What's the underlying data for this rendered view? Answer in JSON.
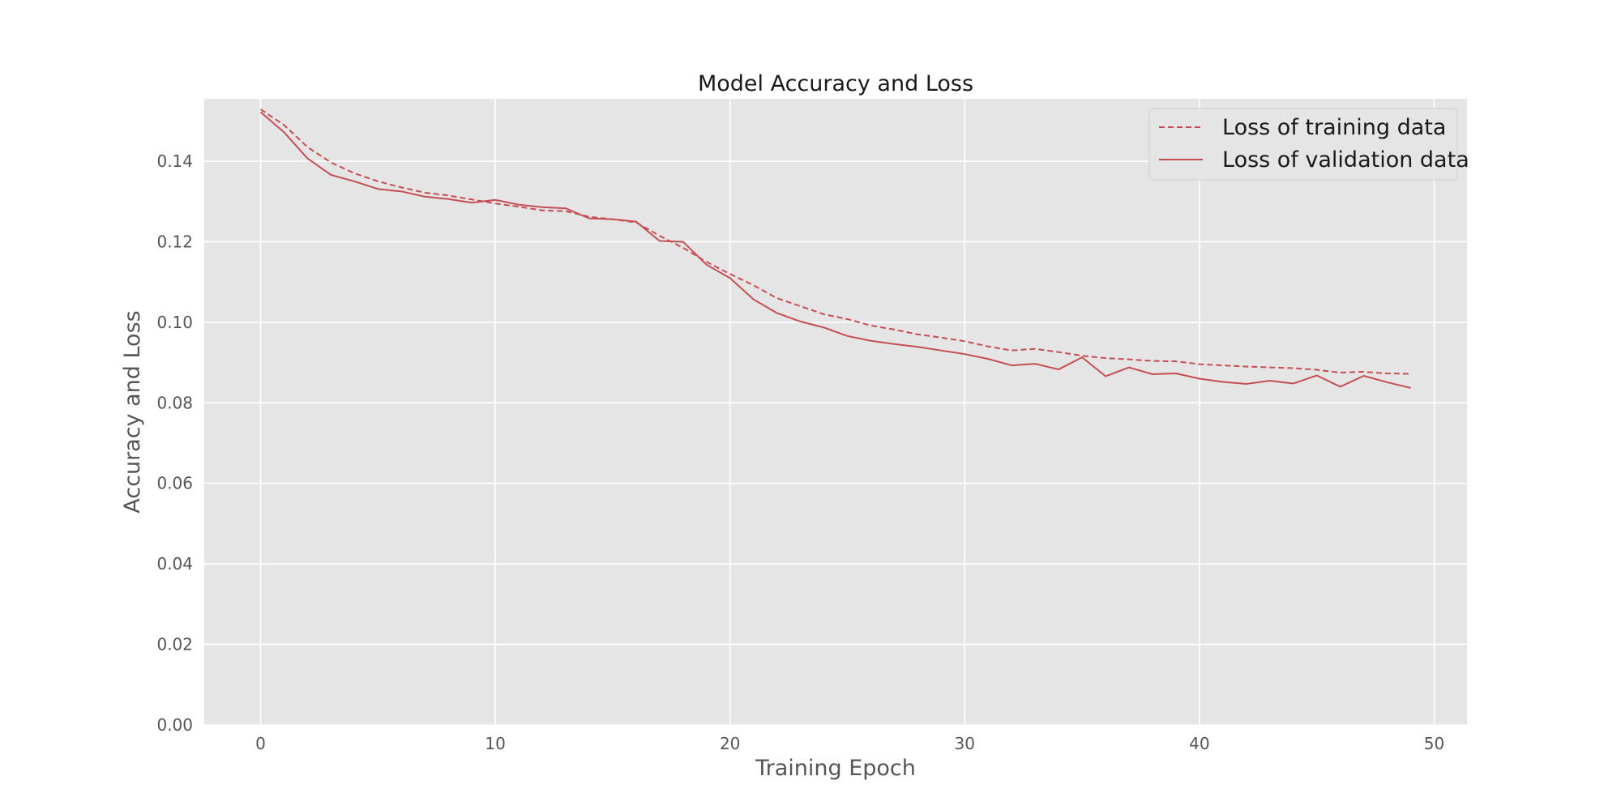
{
  "chart_data": {
    "type": "line",
    "title": "Model Accuracy and Loss",
    "xlabel": "Training Epoch",
    "ylabel": "Accuracy and Loss",
    "xlim": [
      -2.4,
      51.4
    ],
    "ylim": [
      0.0,
      0.1555
    ],
    "xticks": [
      0,
      10,
      20,
      30,
      40,
      50
    ],
    "yticks": [
      0.0,
      0.02,
      0.04,
      0.06,
      0.08,
      0.1,
      0.12,
      0.14
    ],
    "ytick_labels": [
      "0.00",
      "0.02",
      "0.04",
      "0.06",
      "0.08",
      "0.10",
      "0.12",
      "0.14"
    ],
    "grid": true,
    "legend_position": "top-right",
    "x": [
      0,
      1,
      2,
      3,
      4,
      5,
      6,
      7,
      8,
      9,
      10,
      11,
      12,
      13,
      14,
      15,
      16,
      17,
      18,
      19,
      20,
      21,
      22,
      23,
      24,
      25,
      26,
      27,
      28,
      29,
      30,
      31,
      32,
      33,
      34,
      35,
      36,
      37,
      38,
      39,
      40,
      41,
      42,
      43,
      44,
      45,
      46,
      47,
      48,
      49
    ],
    "series": [
      {
        "name": "Loss of training data",
        "color": "#c44e52",
        "dash": "dashed",
        "values": [
          0.1529,
          0.149,
          0.1435,
          0.1397,
          0.137,
          0.135,
          0.1335,
          0.1322,
          0.1315,
          0.1305,
          0.1295,
          0.1287,
          0.1278,
          0.1276,
          0.1262,
          0.1256,
          0.1248,
          0.1215,
          0.1185,
          0.115,
          0.112,
          0.1092,
          0.106,
          0.104,
          0.102,
          0.1008,
          0.0992,
          0.0982,
          0.097,
          0.0962,
          0.0953,
          0.094,
          0.093,
          0.0934,
          0.0926,
          0.0917,
          0.0911,
          0.0908,
          0.0904,
          0.0903,
          0.0896,
          0.0893,
          0.089,
          0.0888,
          0.0886,
          0.0882,
          0.0875,
          0.0877,
          0.0873,
          0.0872
        ]
      },
      {
        "name": "Loss of validation data",
        "color": "#c44e52",
        "dash": "solid",
        "values": [
          0.1522,
          0.1472,
          0.1407,
          0.1366,
          0.135,
          0.1331,
          0.1325,
          0.1312,
          0.1306,
          0.1297,
          0.1304,
          0.1292,
          0.1286,
          0.1283,
          0.1258,
          0.1256,
          0.125,
          0.1202,
          0.12,
          0.1143,
          0.111,
          0.1057,
          0.1023,
          0.1002,
          0.0987,
          0.0966,
          0.0954,
          0.0946,
          0.0939,
          0.093,
          0.0921,
          0.0909,
          0.0893,
          0.0897,
          0.0883,
          0.0913,
          0.0866,
          0.0888,
          0.0871,
          0.0873,
          0.086,
          0.0852,
          0.0847,
          0.0855,
          0.0848,
          0.0868,
          0.084,
          0.0867,
          0.0851,
          0.0837
        ]
      }
    ]
  }
}
